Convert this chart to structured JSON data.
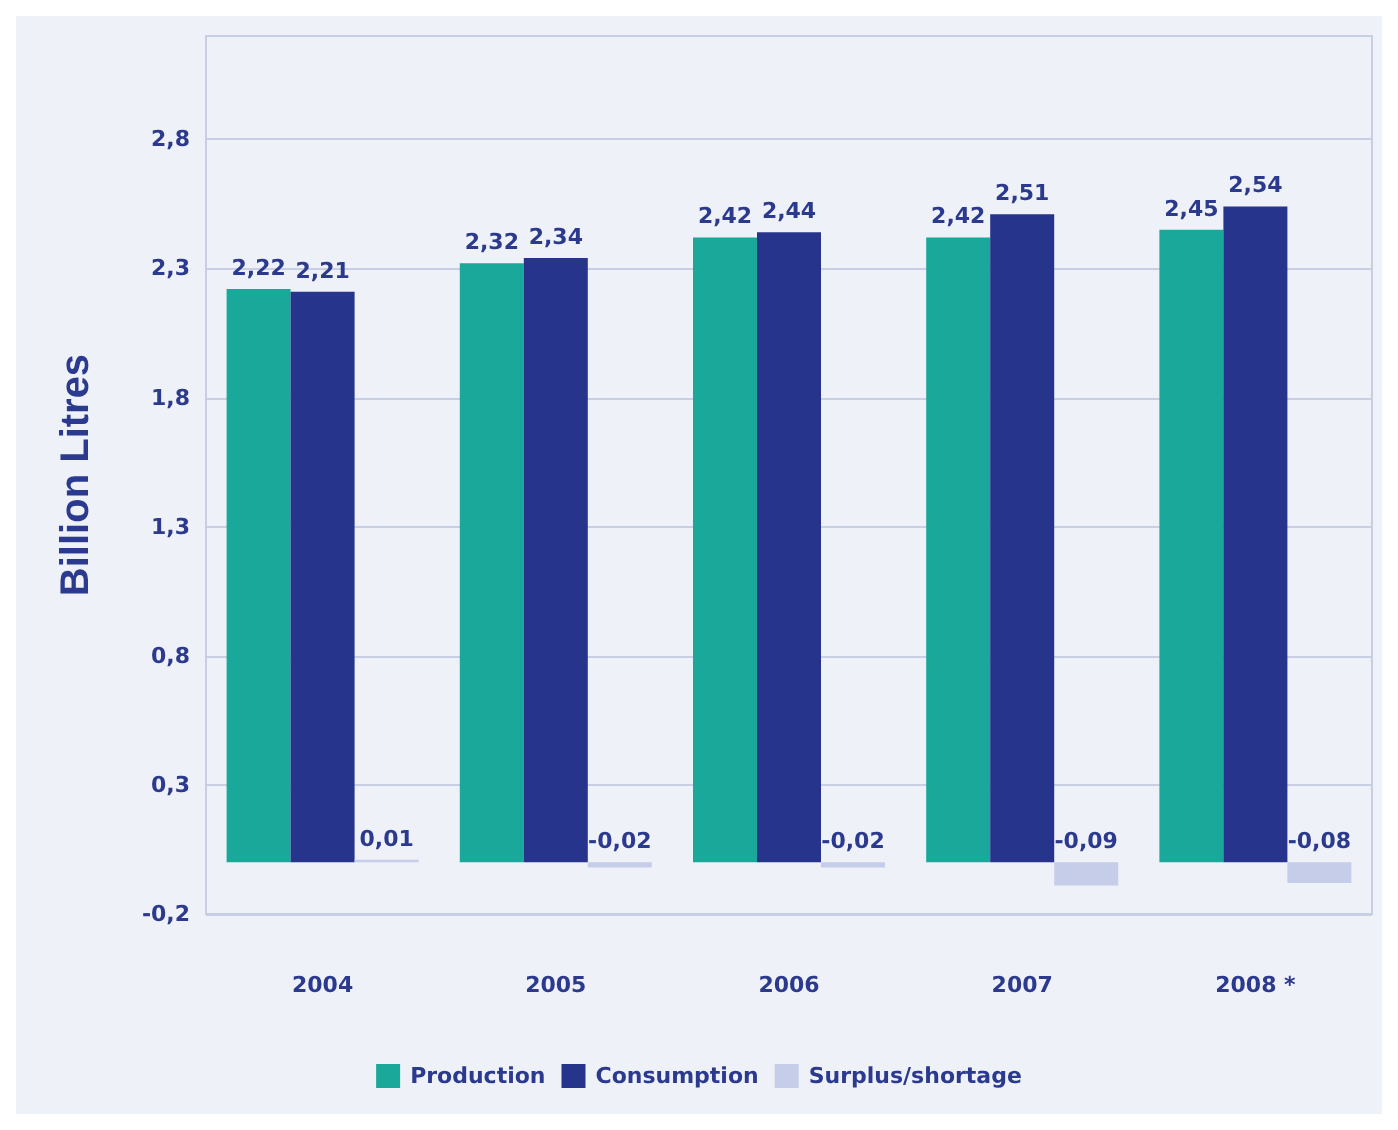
{
  "chart_data": {
    "type": "bar",
    "ylabel": "Billion Litres",
    "categories": [
      "2004",
      "2005",
      "2006",
      "2007",
      "2008 *"
    ],
    "series": [
      {
        "name": "Production",
        "color": "#1aa89a",
        "values": [
          2.22,
          2.32,
          2.42,
          2.42,
          2.45
        ],
        "value_labels": [
          "2,22",
          "2,32",
          "2,42",
          "2,42",
          "2,45"
        ]
      },
      {
        "name": "Consumption",
        "color": "#27348b",
        "values": [
          2.21,
          2.34,
          2.44,
          2.51,
          2.54
        ],
        "value_labels": [
          "2,21",
          "2,34",
          "2,44",
          "2,51",
          "2,54"
        ]
      },
      {
        "name": "Surplus/shortage",
        "color": "#c5cde8",
        "values": [
          0.01,
          -0.02,
          -0.02,
          -0.09,
          -0.08
        ],
        "value_labels": [
          "0,01",
          "-0,02",
          "-0,02",
          "-0,09",
          "-0,08"
        ]
      }
    ],
    "ylim": [
      -0.2,
      3.2
    ],
    "yticks": [
      {
        "value": -0.2,
        "label": "-0,2"
      },
      {
        "value": 0.3,
        "label": "0,3"
      },
      {
        "value": 0.8,
        "label": "0,8"
      },
      {
        "value": 1.3,
        "label": "1,3"
      },
      {
        "value": 1.8,
        "label": "1,8"
      },
      {
        "value": 2.3,
        "label": "2,3"
      },
      {
        "value": 2.8,
        "label": "2,8"
      }
    ],
    "grid": "y",
    "legend": "bottom"
  }
}
